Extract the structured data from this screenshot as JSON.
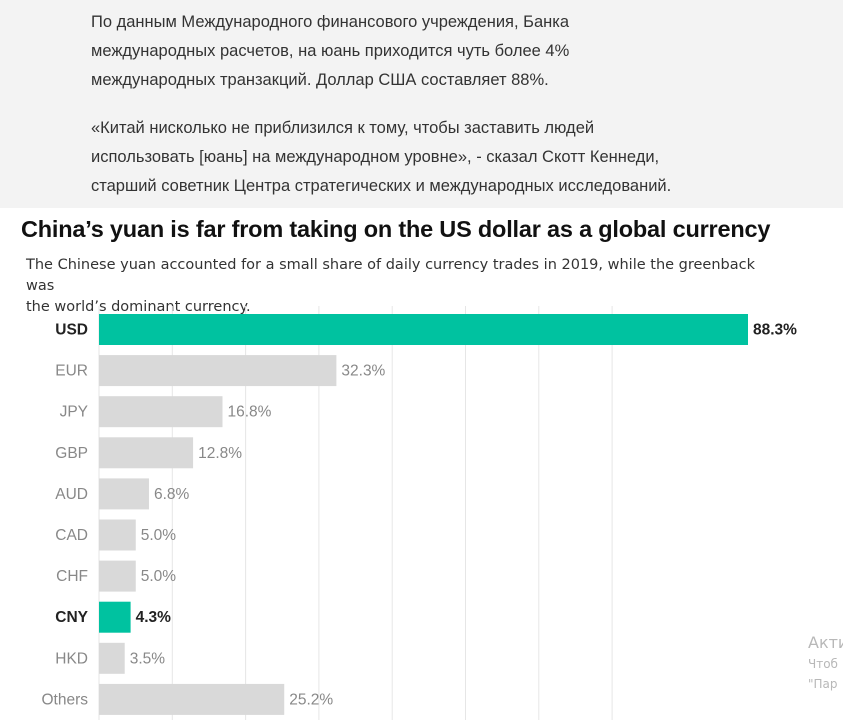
{
  "article": {
    "paragraph1": [
      "По данным Международного финансового учреждения, Банка",
      "международных расчетов, на юань приходится чуть более 4%",
      "международных транзакций. Доллар США составляет 88%."
    ],
    "paragraph2": [
      "«Китай нисколько не приблизился к тому, чтобы заставить людей",
      "использовать [юань] на международном уровне», - сказал Скотт Кеннеди,",
      "старший советник Центра стратегических и международных исследований."
    ]
  },
  "chart_data": {
    "type": "bar",
    "orientation": "horizontal",
    "title": "China’s yuan is far from taking on the US dollar as a global currency",
    "subtitle": [
      "The Chinese yuan accounted for a small share of daily currency trades in 2019, while the greenback was",
      "the world’s dominant currency."
    ],
    "categories": [
      "USD",
      "EUR",
      "JPY",
      "GBP",
      "AUD",
      "CAD",
      "CHF",
      "CNY",
      "HKD",
      "Others"
    ],
    "values": [
      88.3,
      32.3,
      16.8,
      12.8,
      6.8,
      5.0,
      5.0,
      4.3,
      3.5,
      25.2
    ],
    "value_labels": [
      "88.3%",
      "32.3%",
      "16.8%",
      "12.8%",
      "6.8%",
      "5.0%",
      "5.0%",
      "4.3%",
      "3.5%",
      "25.2%"
    ],
    "highlighted": [
      "USD",
      "CNY"
    ],
    "xlim": [
      0,
      88.3
    ],
    "grid": true,
    "colors": {
      "highlight": "#00c2a0",
      "default": "#d9d9d9",
      "gridline": "#e6e6e6",
      "label_highlight": "#222222",
      "label_default": "#888888"
    }
  },
  "overlay": {
    "line1": "Акти",
    "line2": "Чтоб",
    "line3": "\"Пар"
  }
}
